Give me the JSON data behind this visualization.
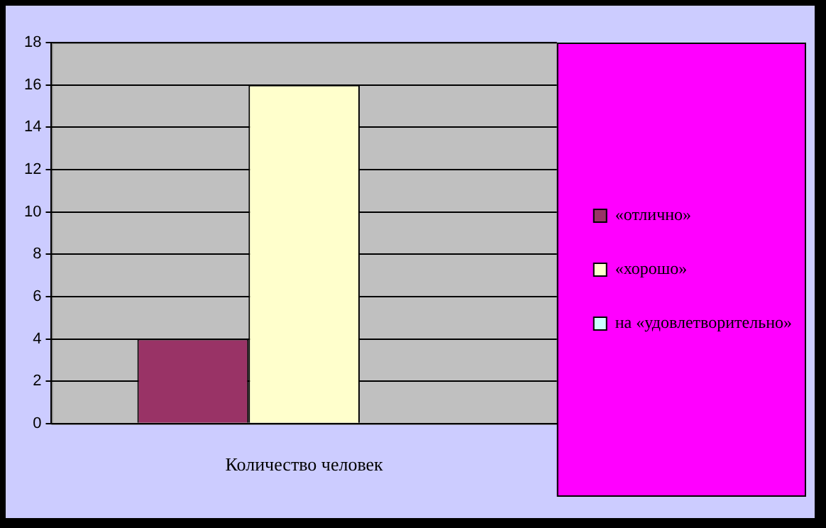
{
  "chart_data": {
    "type": "bar",
    "categories": [
      "Количество человек"
    ],
    "series": [
      {
        "name": "«отлично»",
        "color": "#993366",
        "values": [
          4
        ]
      },
      {
        "name": "«хорошо»",
        "color": "#ffffcc",
        "values": [
          16
        ]
      },
      {
        "name": "на «удовлетворительно»",
        "color": "#ccffff",
        "values": [
          0
        ]
      }
    ],
    "ylim": [
      0,
      18
    ],
    "yticks": [
      0,
      2,
      4,
      6,
      8,
      10,
      12,
      14,
      16,
      18
    ],
    "grid": "y",
    "legend": "right"
  }
}
